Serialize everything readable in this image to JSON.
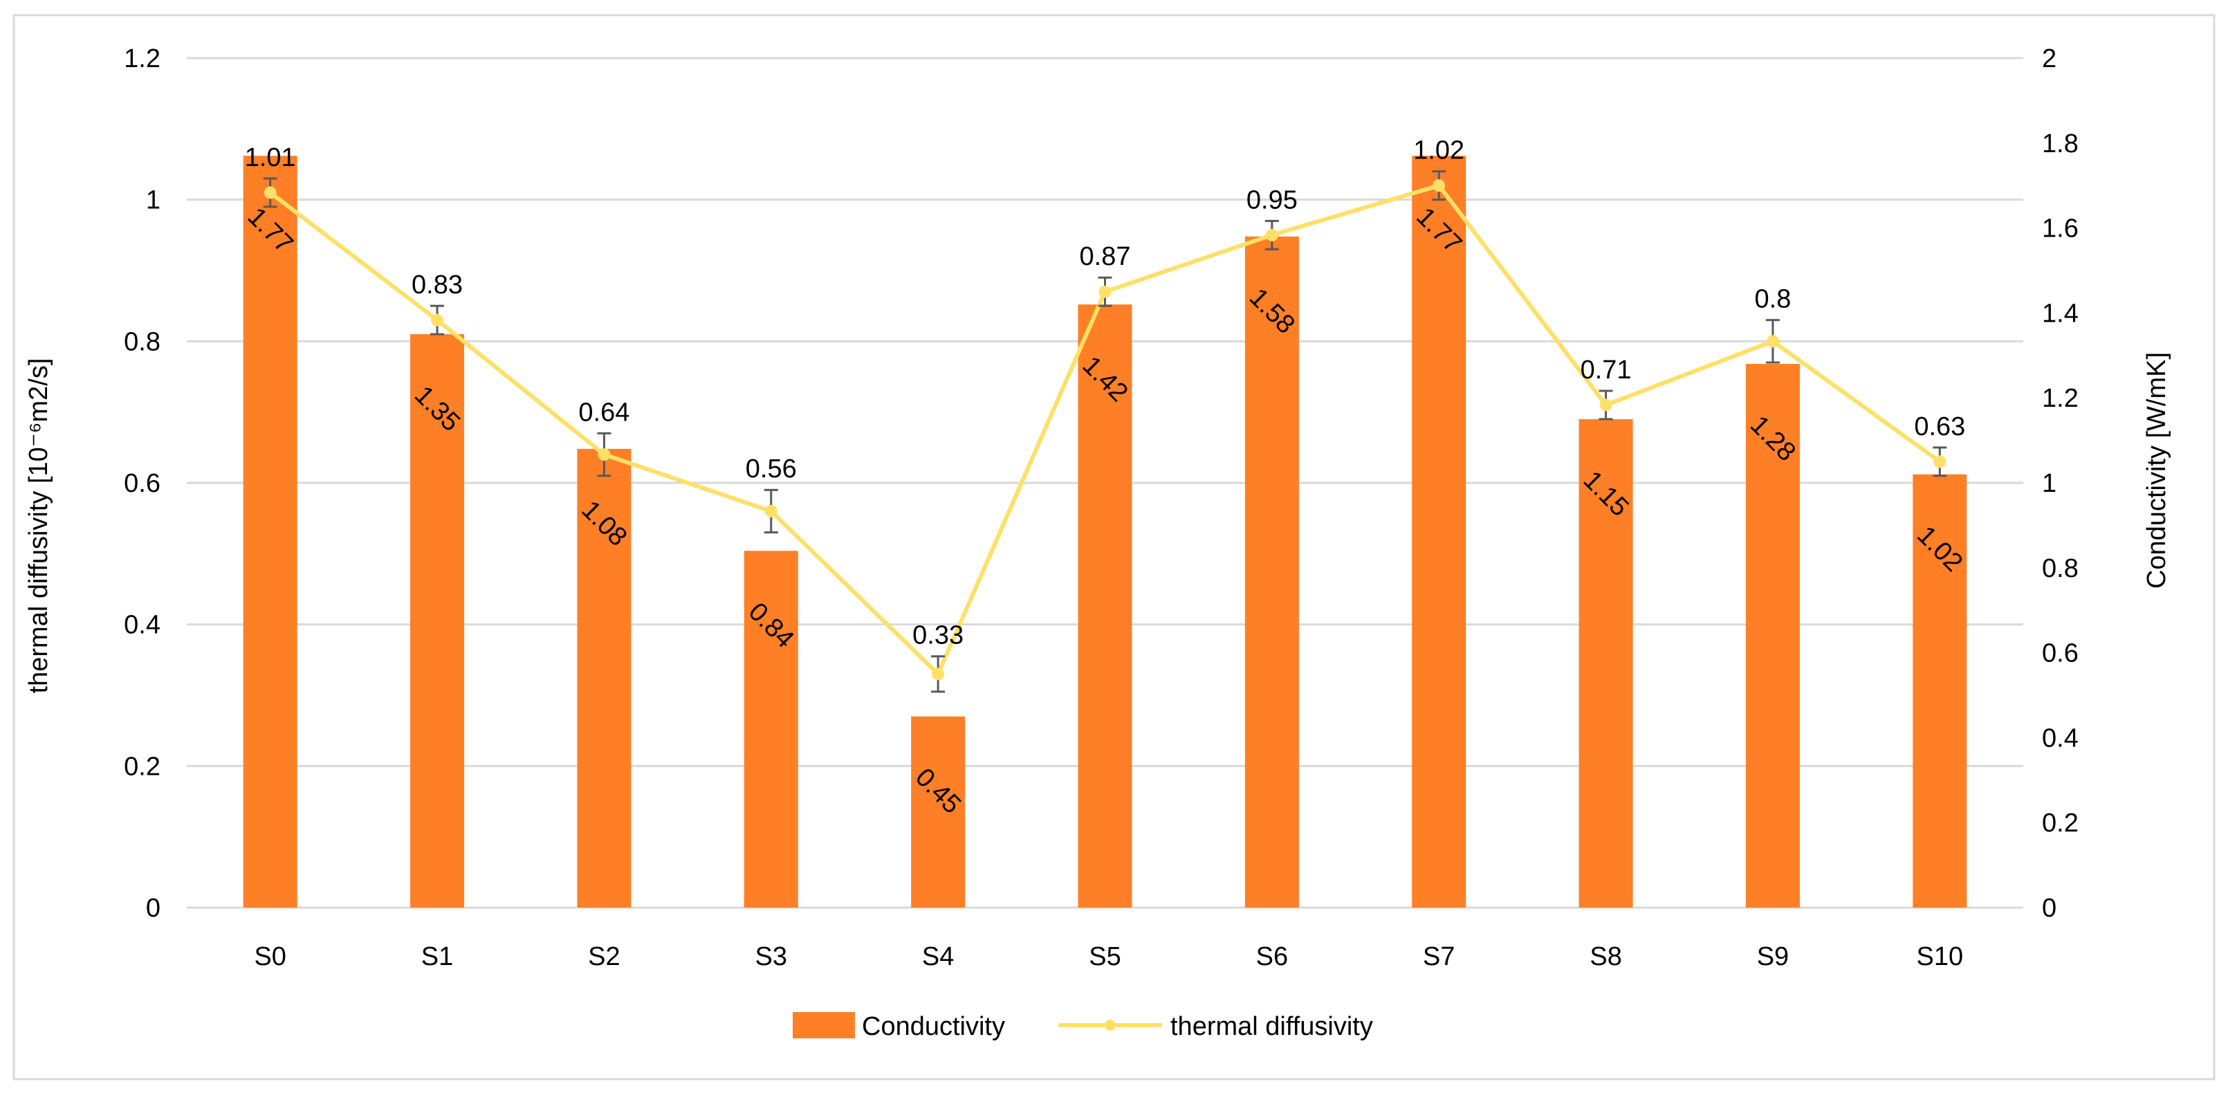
{
  "chart_data": {
    "type": "bar",
    "combo": "bar-line-dual-axis",
    "categories": [
      "S0",
      "S1",
      "S2",
      "S3",
      "S4",
      "S5",
      "S6",
      "S7",
      "S8",
      "S9",
      "S10"
    ],
    "series": [
      {
        "name": "Conductivity",
        "type": "bar",
        "axis": "right",
        "color": "#FF7F27",
        "values": [
          1.77,
          1.35,
          1.08,
          0.84,
          0.45,
          1.42,
          1.58,
          1.77,
          1.15,
          1.28,
          1.02
        ],
        "labels": [
          "1.77",
          "1.35",
          "1.08",
          "0.84",
          "0.45",
          "1.42",
          "1.58",
          "1.77",
          "1.15",
          "1.28",
          "1.02"
        ]
      },
      {
        "name": "thermal diffusivity",
        "type": "line",
        "axis": "left",
        "color": "#FFE066",
        "values": [
          1.01,
          0.83,
          0.64,
          0.56,
          0.33,
          0.87,
          0.95,
          1.02,
          0.71,
          0.8,
          0.63
        ],
        "labels": [
          "1.01",
          "0.83",
          "0.64",
          "0.56",
          "0.33",
          "0.87",
          "0.95",
          "1.02",
          "0.71",
          "0.8",
          "0.63"
        ],
        "error": [
          0.02,
          0.02,
          0.03,
          0.03,
          0.025,
          0.02,
          0.02,
          0.02,
          0.02,
          0.03,
          0.02
        ]
      }
    ],
    "yaxis_left": {
      "label": "thermal diffusivity [10⁻⁶m2/s]",
      "ylim": [
        0,
        1.2
      ],
      "ticks": [
        "0",
        "0.2",
        "0.4",
        "0.6",
        "0.8",
        "1",
        "1.2"
      ]
    },
    "yaxis_right": {
      "label": "Conductivity [W/mK]",
      "ylim": [
        0,
        2
      ],
      "ticks": [
        "0",
        "0.2",
        "0.4",
        "0.6",
        "0.8",
        "1",
        "1.2",
        "1.4",
        "1.6",
        "1.8",
        "2"
      ]
    },
    "grid": true,
    "legend_position": "bottom-center",
    "legend": [
      "Conductivity",
      "thermal diffusivity"
    ]
  }
}
